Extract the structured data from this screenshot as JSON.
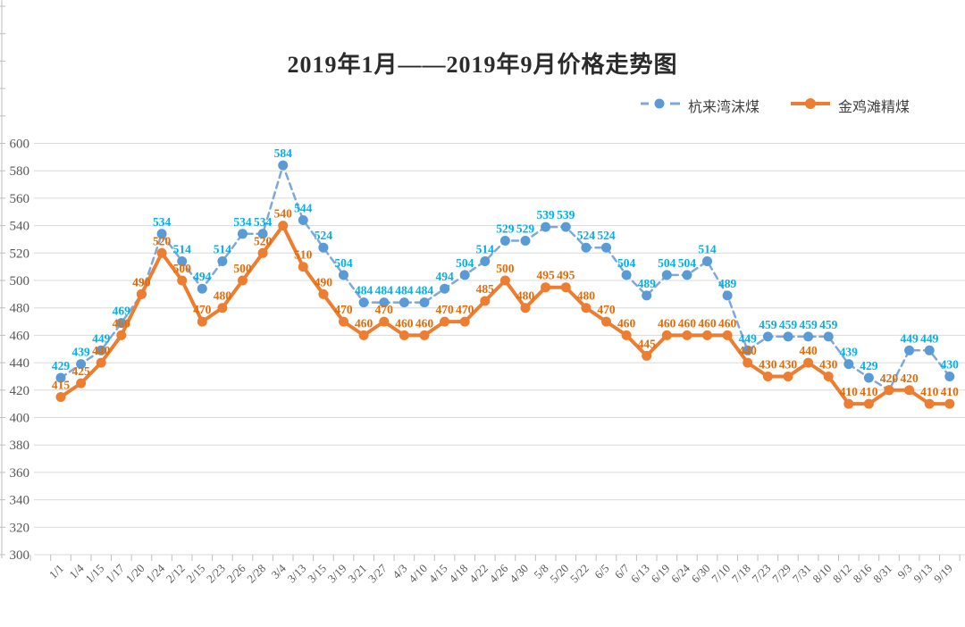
{
  "title": "2019年1月——2019年9月价格走势图",
  "legend": {
    "items": [
      {
        "label": "杭来湾沫煤"
      },
      {
        "label": "金鸡滩精煤"
      }
    ]
  },
  "colors": {
    "series1_line": "#7fa8d9",
    "series1_marker": "#5b9bd5",
    "series1_label": "#00b0f0",
    "series2_line": "#ed7d31",
    "series2_marker": "#ed7d31",
    "series2_label": "#e36c09",
    "gridline": "#d9d9d9",
    "axis": "#bfbfbf",
    "tick_text": "#595959"
  },
  "chart_data": {
    "type": "line",
    "title": "2019年1月——2019年9月价格走势图",
    "xlabel": "",
    "ylabel": "",
    "ylim": [
      300,
      600
    ],
    "ytick_step": 20,
    "grid": true,
    "legend_position": "top-right",
    "data_labels": true,
    "categories": [
      "1/1",
      "1/4",
      "1/15",
      "1/17",
      "1/20",
      "1/24",
      "2/12",
      "2/15",
      "2/23",
      "2/26",
      "2/28",
      "3/4",
      "3/13",
      "3/15",
      "3/19",
      "3/21",
      "3/27",
      "4/3",
      "4/10",
      "4/15",
      "4/18",
      "4/22",
      "4/26",
      "4/30",
      "5/8",
      "5/20",
      "5/22",
      "6/5",
      "6/7",
      "6/13",
      "6/19",
      "6/24",
      "6/30",
      "7/10",
      "7/18",
      "7/23",
      "7/29",
      "7/31",
      "8/10",
      "8/12",
      "8/16",
      "8/31",
      "9/3",
      "9/13",
      "9/19"
    ],
    "series": [
      {
        "name": "杭来湾沫煤",
        "line_style": "dashed",
        "values": [
          429,
          439,
          449,
          469,
          490,
          534,
          514,
          494,
          514,
          534,
          534,
          584,
          544,
          524,
          504,
          484,
          484,
          484,
          484,
          494,
          504,
          514,
          529,
          529,
          539,
          539,
          524,
          524,
          504,
          489,
          504,
          504,
          514,
          489,
          449,
          459,
          459,
          459,
          459,
          439,
          429,
          420,
          449,
          449,
          430
        ]
      },
      {
        "name": "金鸡滩精煤",
        "line_style": "solid",
        "values": [
          415,
          425,
          440,
          460,
          490,
          520,
          500,
          470,
          480,
          500,
          520,
          540,
          510,
          490,
          470,
          460,
          470,
          460,
          460,
          470,
          470,
          485,
          500,
          480,
          495,
          495,
          480,
          470,
          460,
          445,
          460,
          460,
          460,
          460,
          440,
          430,
          430,
          440,
          430,
          410,
          410,
          420,
          420,
          410,
          410
        ]
      }
    ]
  }
}
